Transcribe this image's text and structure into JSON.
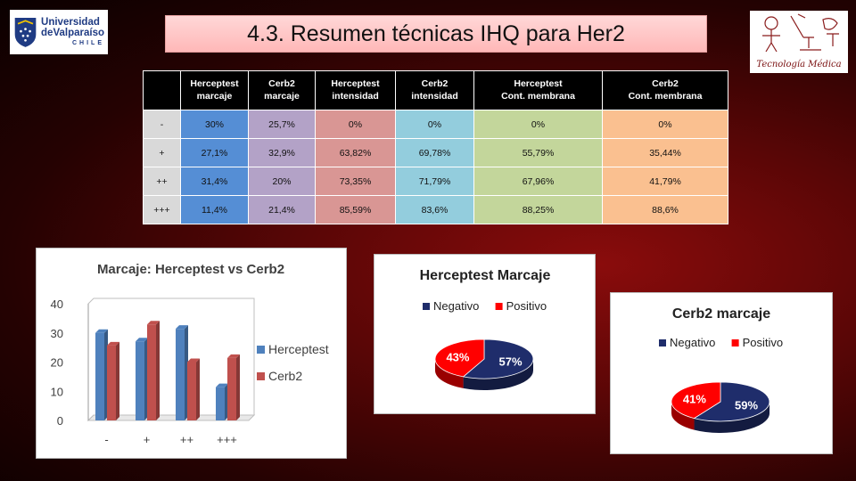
{
  "slide_title": "4.3. Resumen técnicas IHQ para Her2",
  "logo_left": {
    "line1": "Universidad",
    "line2": "deValparaíso",
    "line3": "CHILE"
  },
  "logo_right": {
    "caption": "Tecnología Médica"
  },
  "table": {
    "headers": [
      [
        "Herceptest",
        "marcaje"
      ],
      [
        "Cerb2",
        "marcaje"
      ],
      [
        "Herceptest",
        "intensidad"
      ],
      [
        "Cerb2",
        "intensidad"
      ],
      [
        "Herceptest",
        "Cont. membrana"
      ],
      [
        "Cerb2",
        "Cont. membrana"
      ]
    ],
    "rows": [
      {
        "label": "-",
        "cells": [
          "30%",
          "25,7%",
          "0%",
          "0%",
          "0%",
          "0%"
        ]
      },
      {
        "label": "+",
        "cells": [
          "27,1%",
          "32,9%",
          "63,82%",
          "69,78%",
          "55,79%",
          "35,44%"
        ]
      },
      {
        "label": "++",
        "cells": [
          "31,4%",
          "20%",
          "73,35%",
          "71,79%",
          "67,96%",
          "41,79%"
        ]
      },
      {
        "label": "+++",
        "cells": [
          "11,4%",
          "21,4%",
          "85,59%",
          "83,6%",
          "88,25%",
          "88,6%"
        ]
      }
    ]
  },
  "chart_data": [
    {
      "type": "bar",
      "title": "Marcaje: Herceptest vs Cerb2",
      "categories": [
        "-",
        "+",
        "++",
        "+++"
      ],
      "series": [
        {
          "name": "Herceptest",
          "values": [
            30,
            27.1,
            31.4,
            11.4
          ],
          "color": "#4f81bd"
        },
        {
          "name": "Cerb2",
          "values": [
            25.7,
            32.9,
            20,
            21.4
          ],
          "color": "#c0504d"
        }
      ],
      "ylim": [
        0,
        40
      ],
      "yticks": [
        "0",
        "10",
        "20",
        "30",
        "40"
      ],
      "legend": "right",
      "grid": false
    },
    {
      "type": "pie",
      "title": "Herceptest Marcaje",
      "slices": [
        {
          "name": "Negativo",
          "value": 57,
          "label": "57%",
          "color": "#1f2d6b"
        },
        {
          "name": "Positivo",
          "value": 43,
          "label": "43%",
          "color": "#ff0000"
        }
      ],
      "legend": "top"
    },
    {
      "type": "pie",
      "title": "Cerb2 marcaje",
      "slices": [
        {
          "name": "Negativo",
          "value": 59,
          "label": "59%",
          "color": "#1f2d6b"
        },
        {
          "name": "Positivo",
          "value": 41,
          "label": "41%",
          "color": "#ff0000"
        }
      ],
      "legend": "top"
    }
  ]
}
